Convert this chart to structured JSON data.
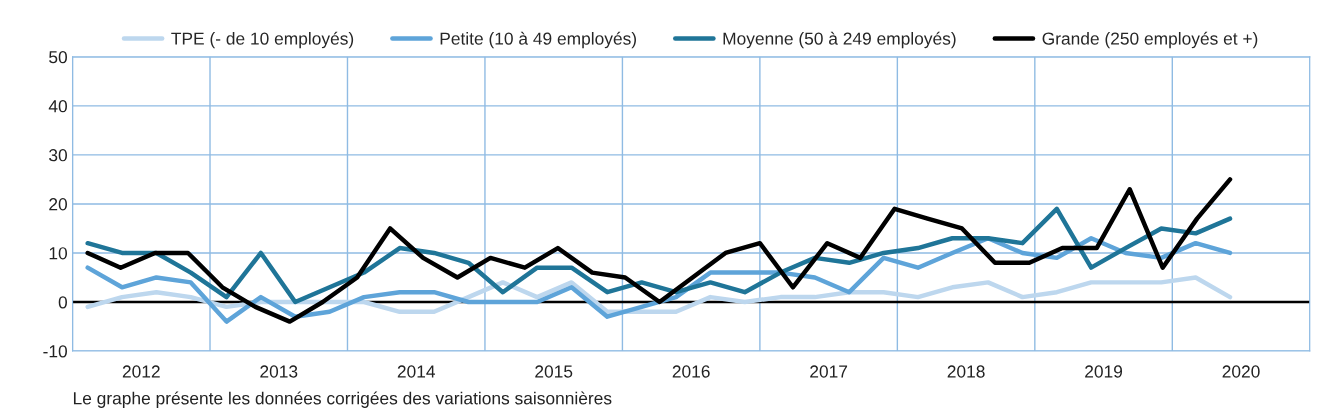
{
  "chart_data": {
    "type": "line",
    "xlim": [
      2012,
      2021
    ],
    "xticks": [
      {
        "value": 2012,
        "label": null
      },
      {
        "value": 2012.5,
        "label": "2012"
      },
      {
        "value": 2013,
        "label": null
      },
      {
        "value": 2013.5,
        "label": "2013"
      },
      {
        "value": 2014,
        "label": null
      },
      {
        "value": 2014.5,
        "label": "2014"
      },
      {
        "value": 2015,
        "label": null
      },
      {
        "value": 2015.5,
        "label": "2015"
      },
      {
        "value": 2016,
        "label": null
      },
      {
        "value": 2016.5,
        "label": "2016"
      },
      {
        "value": 2017,
        "label": null
      },
      {
        "value": 2017.5,
        "label": "2017"
      },
      {
        "value": 2018,
        "label": null
      },
      {
        "value": 2018.5,
        "label": "2018"
      },
      {
        "value": 2019,
        "label": null
      },
      {
        "value": 2019.5,
        "label": "2019"
      },
      {
        "value": 2020,
        "label": null
      },
      {
        "value": 2020.5,
        "label": "2020"
      },
      {
        "value": 2021,
        "label": null
      }
    ],
    "ylim": [
      -10,
      50
    ],
    "yticks": [
      -10,
      0,
      10,
      20,
      30,
      40,
      50
    ],
    "grid": true,
    "legend": "top",
    "marker": "none",
    "line_style": "solid",
    "ref_lines": [
      {
        "axis": "y",
        "value": 0,
        "color": "#000000"
      }
    ],
    "annotations": [
      "Le graphe présente les données corrigées des variations saisonnières"
    ],
    "series": [
      {
        "name": "TPE (- de 10 employés)",
        "color": "#bdd7ee",
        "x": [
          2012.11,
          2012.36,
          2012.61,
          2012.86,
          2013.12,
          2013.37,
          2013.62,
          2013.87,
          2014.12,
          2014.38,
          2014.63,
          2014.88,
          2015.13,
          2015.38,
          2015.63,
          2015.89,
          2016.14,
          2016.39,
          2016.64,
          2016.89,
          2017.15,
          2017.4,
          2017.65,
          2017.9,
          2018.15,
          2018.4,
          2018.66,
          2018.91,
          2019.16,
          2019.41,
          2019.66,
          2019.92,
          2020.17,
          2020.42
        ],
        "values": [
          -1,
          1,
          2,
          1,
          -1,
          0,
          0,
          0,
          0,
          -2,
          -2,
          1,
          4,
          1,
          4,
          -2,
          -2,
          -2,
          1,
          0,
          1,
          1,
          2,
          2,
          1,
          3,
          4,
          1,
          2,
          4,
          4,
          4,
          5,
          1
        ]
      },
      {
        "name": "Petite (10 à 49 employés)",
        "color": "#5ea4d9",
        "x": [
          2012.11,
          2012.36,
          2012.61,
          2012.86,
          2013.12,
          2013.37,
          2013.62,
          2013.87,
          2014.12,
          2014.38,
          2014.63,
          2014.88,
          2015.13,
          2015.38,
          2015.63,
          2015.89,
          2016.14,
          2016.39,
          2016.64,
          2016.89,
          2017.15,
          2017.4,
          2017.65,
          2017.9,
          2018.15,
          2018.4,
          2018.66,
          2018.91,
          2019.16,
          2019.41,
          2019.66,
          2019.92,
          2020.17,
          2020.42
        ],
        "values": [
          7,
          3,
          5,
          4,
          -4,
          1,
          -3,
          -2,
          1,
          2,
          2,
          0,
          0,
          0,
          3,
          -3,
          -1,
          1,
          6,
          6,
          6,
          5,
          2,
          9,
          7,
          10,
          13,
          10,
          9,
          13,
          10,
          9,
          12,
          10
        ]
      },
      {
        "name": "Moyenne (50 à 249 employés)",
        "color": "#1f7598",
        "x": [
          2012.11,
          2012.36,
          2012.61,
          2012.86,
          2013.12,
          2013.37,
          2013.62,
          2013.87,
          2014.12,
          2014.38,
          2014.63,
          2014.88,
          2015.13,
          2015.38,
          2015.63,
          2015.89,
          2016.14,
          2016.39,
          2016.64,
          2016.89,
          2017.15,
          2017.4,
          2017.65,
          2017.9,
          2018.15,
          2018.4,
          2018.66,
          2018.91,
          2019.16,
          2019.41,
          2019.66,
          2019.92,
          2020.17,
          2020.42
        ],
        "values": [
          12,
          10,
          10,
          6,
          1,
          10,
          0,
          3,
          6,
          11,
          10,
          8,
          2,
          7,
          7,
          2,
          4,
          2,
          4,
          2,
          6,
          9,
          8,
          10,
          11,
          13,
          13,
          12,
          19,
          7,
          11,
          15,
          14,
          17
        ]
      },
      {
        "name": "Grande (250 employés et +)",
        "color": "#000000",
        "x": [
          2012.11,
          2012.35,
          2012.6,
          2012.84,
          2013.09,
          2013.33,
          2013.58,
          2013.82,
          2014.07,
          2014.31,
          2014.55,
          2014.8,
          2015.04,
          2015.29,
          2015.53,
          2015.78,
          2016.02,
          2016.27,
          2016.51,
          2016.75,
          2017.0,
          2017.24,
          2017.49,
          2017.73,
          2017.98,
          2018.22,
          2018.47,
          2018.71,
          2018.96,
          2019.2,
          2019.45,
          2019.69,
          2019.93,
          2020.18,
          2020.42
        ],
        "values": [
          10,
          7,
          10,
          10,
          3,
          -1,
          -4,
          0,
          5,
          15,
          9,
          5,
          9,
          7,
          11,
          6,
          5,
          0,
          5,
          10,
          12,
          3,
          12,
          9,
          19,
          17,
          15,
          8,
          8,
          11,
          11,
          23,
          7,
          17,
          25
        ]
      }
    ]
  }
}
